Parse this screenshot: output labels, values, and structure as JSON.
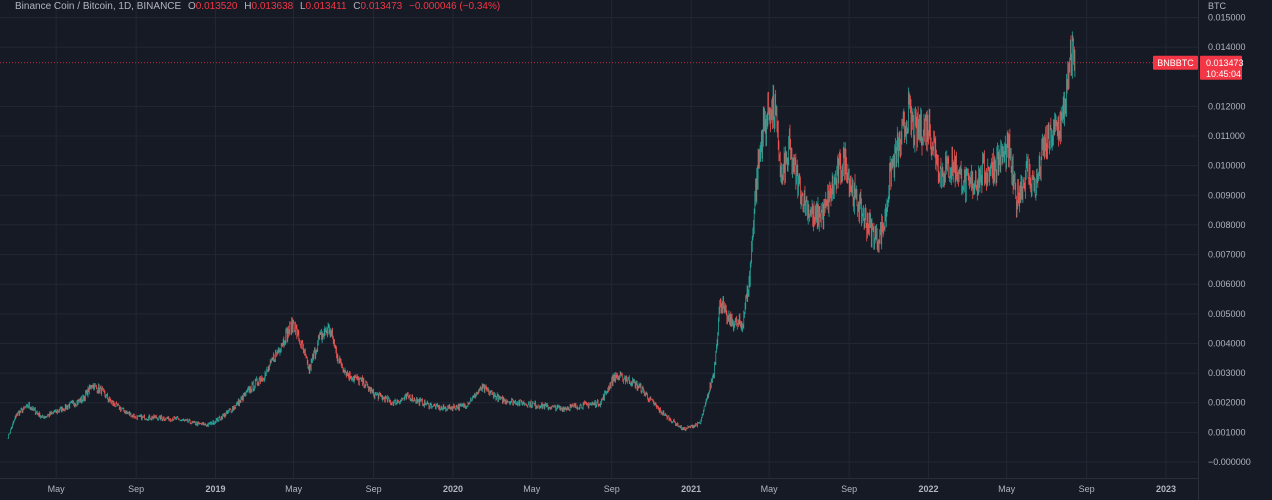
{
  "legend": {
    "pair": "Binance Coin / Bitcoin, 1D, BINANCE",
    "o_label": "O",
    "o": "0.013520",
    "h_label": "H",
    "h": "0.013638",
    "l_label": "L",
    "l": "0.013411",
    "c_label": "C",
    "c": "0.013473",
    "change": "−0.000046 (−0.34%)"
  },
  "price_scale": {
    "unit": "BTC",
    "symbol_tag": "BNBBTC",
    "last_price": "0.013473",
    "countdown": "10:45:04"
  },
  "colors": {
    "background": "#161a25",
    "up": "#26a69a",
    "down": "#ef5350",
    "grid": "#232734",
    "tag": "#f23645"
  },
  "chart_data": {
    "type": "candlestick",
    "title": "Binance Coin / Bitcoin, 1D, BINANCE",
    "ylabel": "BTC",
    "ylim": [
      -3e-06,
      0.0155
    ],
    "yticks": [
      "0.015000",
      "0.014000",
      "0.012000",
      "0.011000",
      "0.010000",
      "0.009000",
      "0.008000",
      "0.007000",
      "0.006000",
      "0.005000",
      "0.004000",
      "0.003000",
      "0.002000",
      "0.001000",
      "−0.000000"
    ],
    "ytick_values": [
      0.015,
      0.014,
      0.012,
      0.011,
      0.01,
      0.009,
      0.008,
      0.007,
      0.006,
      0.005,
      0.004,
      0.003,
      0.002,
      0.001,
      0
    ],
    "xticks": [
      {
        "label": "May",
        "date": "2018-05-01",
        "bold": false
      },
      {
        "label": "Sep",
        "date": "2018-09-01",
        "bold": false
      },
      {
        "label": "2019",
        "date": "2019-01-01",
        "bold": true
      },
      {
        "label": "May",
        "date": "2019-05-01",
        "bold": false
      },
      {
        "label": "Sep",
        "date": "2019-09-01",
        "bold": false
      },
      {
        "label": "2020",
        "date": "2020-01-01",
        "bold": true
      },
      {
        "label": "May",
        "date": "2020-05-01",
        "bold": false
      },
      {
        "label": "Sep",
        "date": "2020-09-01",
        "bold": false
      },
      {
        "label": "2021",
        "date": "2021-01-01",
        "bold": true
      },
      {
        "label": "May",
        "date": "2021-05-01",
        "bold": false
      },
      {
        "label": "Sep",
        "date": "2021-09-01",
        "bold": false
      },
      {
        "label": "2022",
        "date": "2022-01-01",
        "bold": true
      },
      {
        "label": "May",
        "date": "2022-05-01",
        "bold": false
      },
      {
        "label": "Sep",
        "date": "2022-09-01",
        "bold": false
      },
      {
        "label": "2023",
        "date": "2023-01-01",
        "bold": true
      }
    ],
    "series": [
      {
        "name": "BNBBTC",
        "points": [
          [
            "2018-02-16",
            0.00085
          ],
          [
            "2018-03-01",
            0.0016
          ],
          [
            "2018-03-20",
            0.0019
          ],
          [
            "2018-04-10",
            0.0015
          ],
          [
            "2018-05-01",
            0.0017
          ],
          [
            "2018-05-20",
            0.0019
          ],
          [
            "2018-06-10",
            0.0021
          ],
          [
            "2018-06-25",
            0.0026
          ],
          [
            "2018-07-10",
            0.0024
          ],
          [
            "2018-07-25",
            0.002
          ],
          [
            "2018-08-15",
            0.0017
          ],
          [
            "2018-09-01",
            0.0015
          ],
          [
            "2018-10-01",
            0.0015
          ],
          [
            "2018-11-01",
            0.00145
          ],
          [
            "2018-12-01",
            0.0013
          ],
          [
            "2018-12-20",
            0.00125
          ],
          [
            "2019-01-10",
            0.0015
          ],
          [
            "2019-02-01",
            0.0019
          ],
          [
            "2019-03-01",
            0.0026
          ],
          [
            "2019-03-20",
            0.003
          ],
          [
            "2019-04-10",
            0.0039
          ],
          [
            "2019-04-25",
            0.0045
          ],
          [
            "2019-05-01",
            0.0047
          ],
          [
            "2019-05-15",
            0.0038
          ],
          [
            "2019-05-25",
            0.0031
          ],
          [
            "2019-06-10",
            0.0042
          ],
          [
            "2019-06-25",
            0.0045
          ],
          [
            "2019-07-10",
            0.0034
          ],
          [
            "2019-07-25",
            0.0029
          ],
          [
            "2019-08-15",
            0.0027
          ],
          [
            "2019-09-01",
            0.0023
          ],
          [
            "2019-10-01",
            0.002
          ],
          [
            "2019-10-25",
            0.0022
          ],
          [
            "2019-11-15",
            0.002
          ],
          [
            "2019-12-15",
            0.0018
          ],
          [
            "2020-01-20",
            0.0019
          ],
          [
            "2020-02-15",
            0.0025
          ],
          [
            "2020-03-15",
            0.0021
          ],
          [
            "2020-04-15",
            0.002
          ],
          [
            "2020-05-15",
            0.0019
          ],
          [
            "2020-06-15",
            0.0018
          ],
          [
            "2020-07-15",
            0.0019
          ],
          [
            "2020-08-15",
            0.002
          ],
          [
            "2020-09-05",
            0.0029
          ],
          [
            "2020-09-25",
            0.0028
          ],
          [
            "2020-10-15",
            0.0025
          ],
          [
            "2020-11-15",
            0.0017
          ],
          [
            "2020-12-20",
            0.0011
          ],
          [
            "2021-01-15",
            0.0013
          ],
          [
            "2021-02-05",
            0.003
          ],
          [
            "2021-02-15",
            0.0055
          ],
          [
            "2021-02-25",
            0.0048
          ],
          [
            "2021-03-20",
            0.0046
          ],
          [
            "2021-04-01",
            0.0062
          ],
          [
            "2021-04-10",
            0.0092
          ],
          [
            "2021-04-20",
            0.011
          ],
          [
            "2021-05-01",
            0.012
          ],
          [
            "2021-05-10",
            0.0118
          ],
          [
            "2021-05-20",
            0.0095
          ],
          [
            "2021-06-01",
            0.0105
          ],
          [
            "2021-06-20",
            0.009
          ],
          [
            "2021-07-10",
            0.0082
          ],
          [
            "2021-07-25",
            0.0085
          ],
          [
            "2021-08-15",
            0.0097
          ],
          [
            "2021-08-25",
            0.0102
          ],
          [
            "2021-09-10",
            0.0089
          ],
          [
            "2021-09-25",
            0.0082
          ],
          [
            "2021-10-15",
            0.0075
          ],
          [
            "2021-10-25",
            0.008
          ],
          [
            "2021-11-05",
            0.01
          ],
          [
            "2021-11-20",
            0.0108
          ],
          [
            "2021-12-01",
            0.0118
          ],
          [
            "2021-12-10",
            0.0112
          ],
          [
            "2022-01-01",
            0.0113
          ],
          [
            "2022-01-20",
            0.0098
          ],
          [
            "2022-02-10",
            0.01
          ],
          [
            "2022-03-01",
            0.0093
          ],
          [
            "2022-04-01",
            0.0098
          ],
          [
            "2022-04-20",
            0.0102
          ],
          [
            "2022-05-05",
            0.0105
          ],
          [
            "2022-05-15",
            0.0088
          ],
          [
            "2022-06-01",
            0.0098
          ],
          [
            "2022-06-15",
            0.0092
          ],
          [
            "2022-06-25",
            0.0105
          ],
          [
            "2022-07-10",
            0.011
          ],
          [
            "2022-07-25",
            0.0115
          ],
          [
            "2022-08-05",
            0.013
          ],
          [
            "2022-08-11",
            0.014
          ],
          [
            "2022-08-14",
            0.013473
          ]
        ]
      }
    ]
  }
}
